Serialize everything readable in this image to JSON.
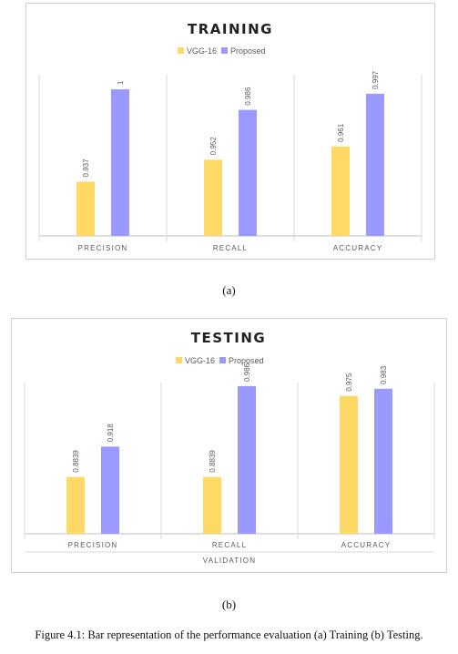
{
  "colors": {
    "vgg": "#FFD966",
    "proposed": "#9999FF",
    "axis": "#BFBFBF",
    "text": "#595959",
    "title": "#222222"
  },
  "chart_data": [
    {
      "type": "bar",
      "title": "TRAINING",
      "categories": [
        "PRECISION",
        "RECALL",
        "ACCURACY"
      ],
      "series": [
        {
          "name": "VGG-16",
          "values": [
            0.937,
            0.952,
            0.961
          ],
          "labels": [
            "0.937",
            "0.952",
            "0.961"
          ]
        },
        {
          "name": "Proposed",
          "values": [
            1,
            0.986,
            0.997
          ],
          "labels": [
            "1",
            "0.986",
            "0.997"
          ]
        }
      ],
      "xlabel": "",
      "ylabel": "",
      "ylim": [
        0.9,
        1.01
      ],
      "legend": "top-center",
      "grid": false
    },
    {
      "type": "bar",
      "title": "TESTING",
      "categories": [
        "PRECISION",
        "RECALL",
        "ACCURACY"
      ],
      "series": [
        {
          "name": "VGG-16",
          "values": [
            0.8839,
            0.8839,
            0.975
          ],
          "labels": [
            "0.8839",
            "0.8839",
            "0.975"
          ]
        },
        {
          "name": "Proposed",
          "values": [
            0.918,
            0.986,
            0.983
          ],
          "labels": [
            "0.918",
            "0.986",
            "0.983"
          ]
        }
      ],
      "xlabel": "VALIDATION",
      "ylabel": "",
      "ylim": [
        0.82,
        0.99
      ],
      "legend": "top-center",
      "grid": false
    }
  ],
  "captions": {
    "a": "(a)",
    "b": "(b)",
    "figure": "Figure 4.1: Bar representation of the performance evaluation (a) Training (b) Testing."
  }
}
